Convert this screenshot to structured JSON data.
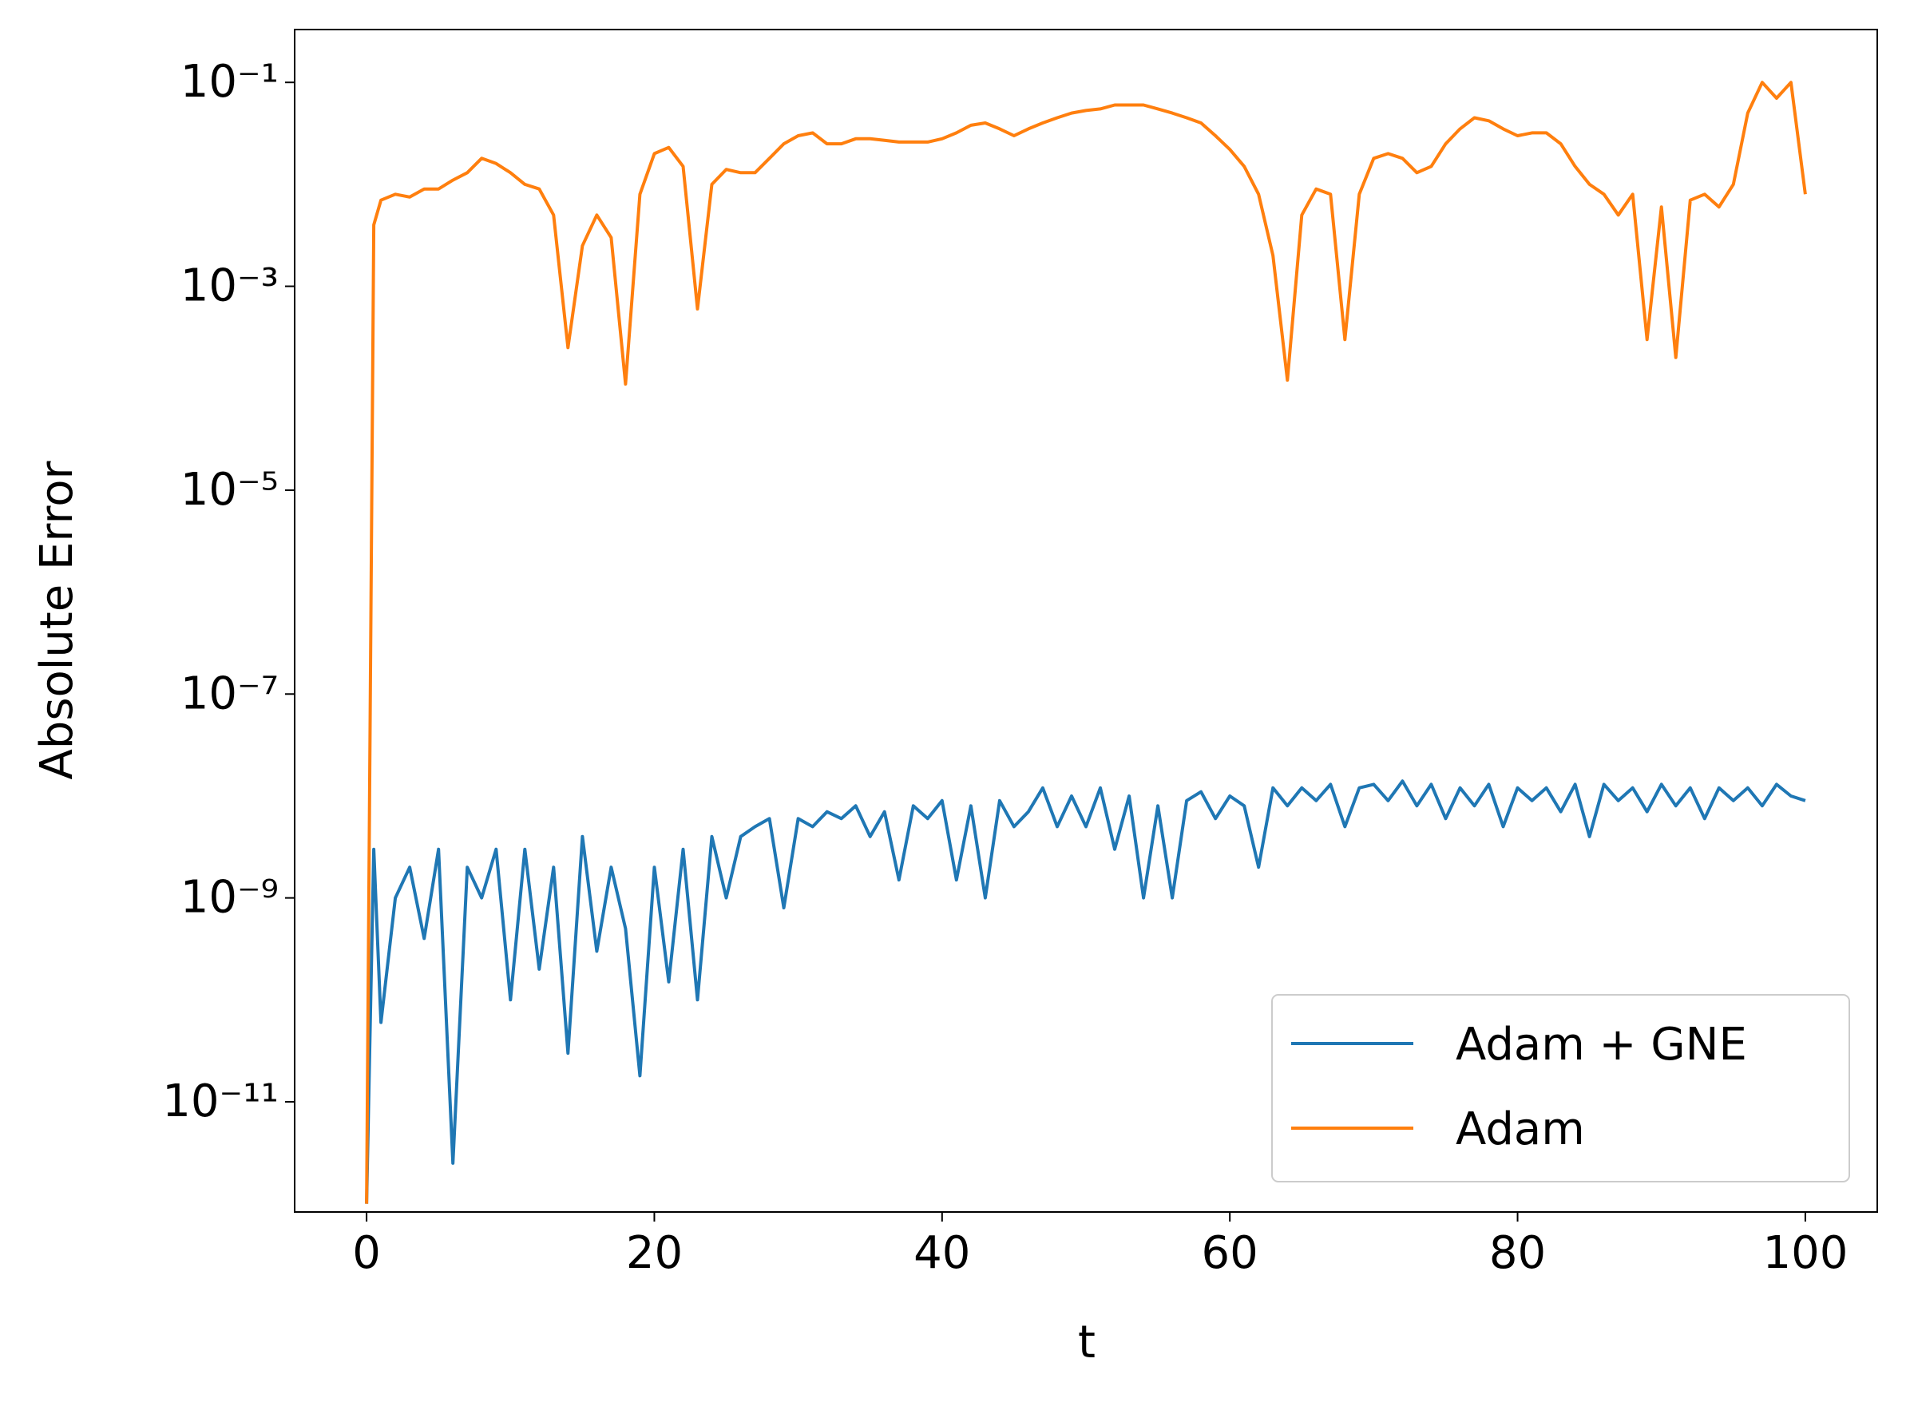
{
  "chart_data": {
    "type": "line",
    "xlabel": "t",
    "ylabel": "Absolute Error",
    "x": [
      0,
      0.5,
      1,
      2,
      3,
      4,
      5,
      6,
      7,
      8,
      9,
      10,
      11,
      12,
      13,
      14,
      15,
      16,
      17,
      18,
      19,
      20,
      21,
      22,
      23,
      24,
      25,
      26,
      27,
      28,
      29,
      30,
      31,
      32,
      33,
      34,
      35,
      36,
      37,
      38,
      39,
      40,
      41,
      42,
      43,
      44,
      45,
      46,
      47,
      48,
      49,
      50,
      51,
      52,
      53,
      54,
      55,
      56,
      57,
      58,
      59,
      60,
      61,
      62,
      63,
      64,
      65,
      66,
      67,
      68,
      69,
      70,
      71,
      72,
      73,
      74,
      75,
      76,
      77,
      78,
      79,
      80,
      81,
      82,
      83,
      84,
      85,
      86,
      87,
      88,
      89,
      90,
      91,
      92,
      93,
      94,
      95,
      96,
      97,
      98,
      99,
      100
    ],
    "series": [
      {
        "name": "Adam + GNE",
        "color": "#1f77b4",
        "values": [
          1e-12,
          3e-09,
          6e-11,
          1e-09,
          2e-09,
          4e-10,
          3e-09,
          2.5e-12,
          2e-09,
          1e-09,
          3e-09,
          1e-10,
          3e-09,
          2e-10,
          2e-09,
          3e-11,
          4e-09,
          3e-10,
          2e-09,
          5e-10,
          1.8e-11,
          2e-09,
          1.5e-10,
          3e-09,
          1e-10,
          4e-09,
          1e-09,
          4e-09,
          5e-09,
          6e-09,
          8e-10,
          6e-09,
          5e-09,
          7e-09,
          6e-09,
          8e-09,
          4e-09,
          7e-09,
          1.5e-09,
          8e-09,
          6e-09,
          9e-09,
          1.5e-09,
          8e-09,
          1e-09,
          9e-09,
          5e-09,
          7e-09,
          1.2e-08,
          5e-09,
          1e-08,
          5e-09,
          1.2e-08,
          3e-09,
          1e-08,
          1e-09,
          8e-09,
          1e-09,
          9e-09,
          1.1e-08,
          6e-09,
          1e-08,
          8e-09,
          2e-09,
          1.2e-08,
          8e-09,
          1.2e-08,
          9e-09,
          1.3e-08,
          5e-09,
          1.2e-08,
          1.3e-08,
          9e-09,
          1.4e-08,
          8e-09,
          1.3e-08,
          6e-09,
          1.2e-08,
          8e-09,
          1.3e-08,
          5e-09,
          1.2e-08,
          9e-09,
          1.2e-08,
          7e-09,
          1.3e-08,
          4e-09,
          1.3e-08,
          9e-09,
          1.2e-08,
          7e-09,
          1.3e-08,
          8e-09,
          1.2e-08,
          6e-09,
          1.2e-08,
          9e-09,
          1.2e-08,
          8e-09,
          1.3e-08,
          1e-08,
          9e-09
        ]
      },
      {
        "name": "Adam",
        "color": "#ff7f0e",
        "values": [
          1e-12,
          0.004,
          0.007,
          0.008,
          0.0075,
          0.009,
          0.009,
          0.011,
          0.013,
          0.018,
          0.016,
          0.013,
          0.01,
          0.009,
          0.005,
          0.00025,
          0.0025,
          0.005,
          0.003,
          0.00011,
          0.008,
          0.02,
          0.023,
          0.015,
          0.0006,
          0.01,
          0.014,
          0.013,
          0.013,
          0.018,
          0.025,
          0.03,
          0.032,
          0.025,
          0.025,
          0.028,
          0.028,
          0.027,
          0.026,
          0.026,
          0.026,
          0.028,
          0.032,
          0.038,
          0.04,
          0.035,
          0.03,
          0.035,
          0.04,
          0.045,
          0.05,
          0.053,
          0.055,
          0.06,
          0.06,
          0.06,
          0.055,
          0.05,
          0.045,
          0.04,
          0.03,
          0.022,
          0.015,
          0.008,
          0.002,
          0.00012,
          0.005,
          0.009,
          0.008,
          0.0003,
          0.008,
          0.018,
          0.02,
          0.018,
          0.013,
          0.015,
          0.025,
          0.035,
          0.045,
          0.042,
          0.035,
          0.03,
          0.032,
          0.032,
          0.025,
          0.015,
          0.01,
          0.008,
          0.005,
          0.008,
          0.0003,
          0.006,
          0.0002,
          0.007,
          0.008,
          0.006,
          0.01,
          0.05,
          0.1,
          0.07,
          0.1,
          0.008
        ]
      }
    ],
    "xlim": [
      -5,
      105
    ],
    "xticks": [
      0,
      20,
      40,
      60,
      80,
      100
    ],
    "ylim": [
      8.3e-13,
      0.33
    ],
    "log_y": true,
    "yticks": [
      {
        "value": 0.1,
        "label": "10⁻¹"
      },
      {
        "value": 0.001,
        "label": "10⁻³"
      },
      {
        "value": 1e-05,
        "label": "10⁻⁵"
      },
      {
        "value": 1e-07,
        "label": "10⁻⁷"
      },
      {
        "value": 1e-09,
        "label": "10⁻⁹"
      },
      {
        "value": 1e-11,
        "label": "10⁻¹¹"
      }
    ],
    "legend": "lower right",
    "grid": false
  }
}
